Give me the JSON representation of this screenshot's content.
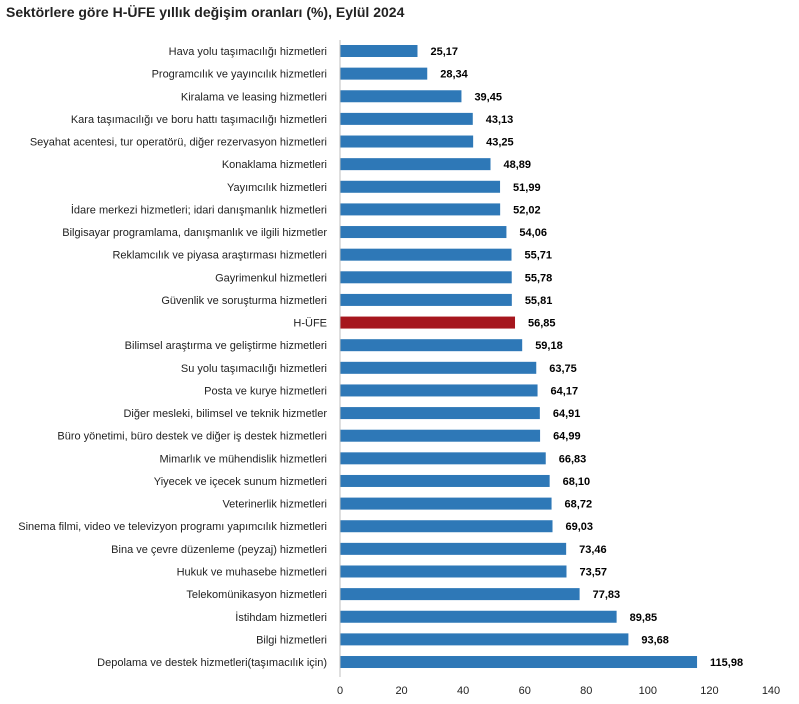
{
  "chart_data": {
    "type": "bar",
    "orientation": "horizontal",
    "title": "Sektörlere göre H-ÜFE yıllık değişim oranları (%), Eylül 2024",
    "categories": [
      "Hava yolu taşımacılığı hizmetleri",
      "Programcılık ve yayıncılık hizmetleri",
      "Kiralama ve leasing hizmetleri",
      "Kara taşımacılığı ve boru hattı taşımacılığı hizmetleri",
      "Seyahat acentesi, tur operatörü, diğer rezervasyon hizmetleri",
      "Konaklama hizmetleri",
      "Yayımcılık hizmetleri",
      "İdare merkezi hizmetleri; idari danışmanlık hizmetleri",
      "Bilgisayar programlama, danışmanlık ve ilgili hizmetler",
      "Reklamcılık ve piyasa araştırması hizmetleri",
      "Gayrimenkul hizmetleri",
      "Güvenlik ve soruşturma hizmetleri",
      "H-ÜFE",
      "Bilimsel araştırma ve geliştirme hizmetleri",
      "Su yolu taşımacılığı hizmetleri",
      "Posta ve kurye hizmetleri",
      "Diğer mesleki, bilimsel ve teknik hizmetler",
      "Büro yönetimi, büro destek ve diğer iş destek hizmetleri",
      "Mimarlık ve mühendislik hizmetleri",
      "Yiyecek ve içecek sunum hizmetleri",
      "Veterinerlik hizmetleri",
      "Sinema filmi, video ve televizyon programı yapımcılık hizmetleri",
      "Bina ve çevre düzenleme (peyzaj) hizmetleri",
      "Hukuk ve muhasebe hizmetleri",
      "Telekomünikasyon hizmetleri",
      "İstihdam hizmetleri",
      "Bilgi hizmetleri",
      "Depolama ve destek hizmetleri(taşımacılık için)"
    ],
    "values": [
      25.17,
      28.34,
      39.45,
      43.13,
      43.25,
      48.89,
      51.99,
      52.02,
      54.06,
      55.71,
      55.78,
      55.81,
      56.85,
      59.18,
      63.75,
      64.17,
      64.91,
      64.99,
      66.83,
      68.1,
      68.72,
      69.03,
      73.46,
      73.57,
      77.83,
      89.85,
      93.68,
      115.98
    ],
    "value_labels": [
      "25,17",
      "28,34",
      "39,45",
      "43,13",
      "43,25",
      "48,89",
      "51,99",
      "52,02",
      "54,06",
      "55,71",
      "55,78",
      "55,81",
      "56,85",
      "59,18",
      "63,75",
      "64,17",
      "64,91",
      "64,99",
      "66,83",
      "68,10",
      "68,72",
      "69,03",
      "73,46",
      "73,57",
      "77,83",
      "89,85",
      "93,68",
      "115,98"
    ],
    "highlight_category": "H-ÜFE",
    "xlim": [
      0,
      140
    ],
    "xticks": [
      0,
      20,
      40,
      60,
      80,
      100,
      120,
      140
    ],
    "grid": false,
    "legend": "none",
    "colors": {
      "bar": "#2e78b7",
      "highlight": "#a6161d"
    }
  }
}
